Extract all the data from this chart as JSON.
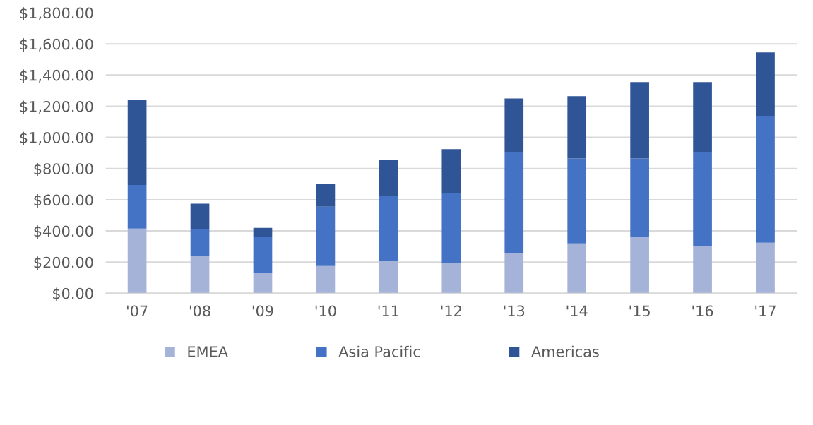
{
  "chart_data": {
    "type": "bar",
    "stacked": true,
    "categories": [
      "'07",
      "'08",
      "'09",
      "'10",
      "'11",
      "'12",
      "'13",
      "'14",
      "'15",
      "'16",
      "'17"
    ],
    "series": [
      {
        "name": "EMEA",
        "color": "#a5b3d8",
        "values": [
          415,
          240,
          130,
          175,
          210,
          195,
          260,
          320,
          360,
          305,
          325
        ]
      },
      {
        "name": "Asia Pacific",
        "color": "#4472c4",
        "values": [
          280,
          170,
          230,
          380,
          415,
          450,
          645,
          545,
          505,
          600,
          810
        ]
      },
      {
        "name": "Americas",
        "color": "#2f5597",
        "values": [
          545,
          165,
          60,
          145,
          230,
          280,
          345,
          400,
          490,
          450,
          410
        ]
      }
    ],
    "ylim": [
      0,
      1800
    ],
    "yticks": [
      {
        "value": 0,
        "label": "$0.00"
      },
      {
        "value": 200,
        "label": "$200.00"
      },
      {
        "value": 400,
        "label": "$400.00"
      },
      {
        "value": 600,
        "label": "$600.00"
      },
      {
        "value": 800,
        "label": "$800.00"
      },
      {
        "value": 1000,
        "label": "$1,000.00"
      },
      {
        "value": 1200,
        "label": "$1,200.00"
      },
      {
        "value": 1400,
        "label": "$1,400.00"
      },
      {
        "value": 1600,
        "label": "$1,600.00"
      },
      {
        "value": 1800,
        "label": "$1,800.00"
      }
    ],
    "grid": "y",
    "legend": "bottom"
  }
}
